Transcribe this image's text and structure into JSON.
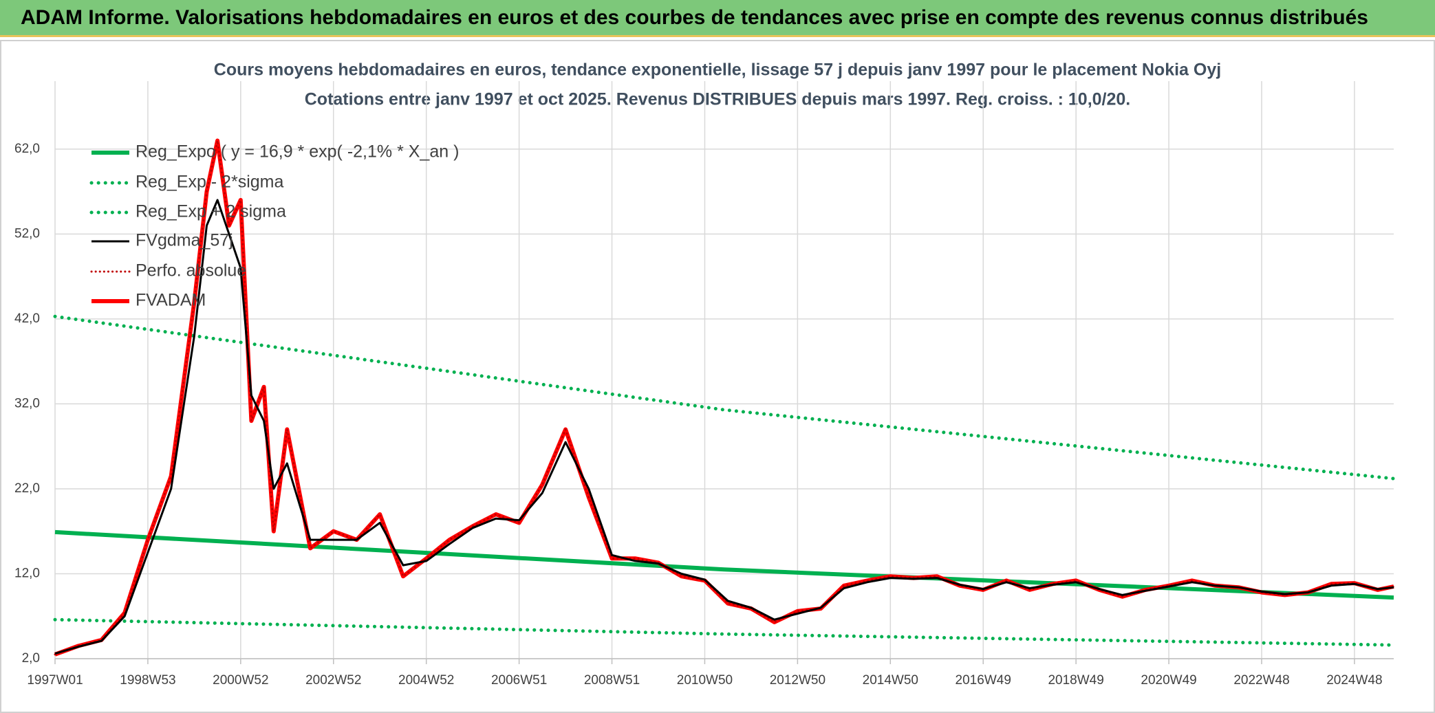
{
  "header": {
    "title": "ADAM Informe. Valorisations hebdomadaires en euros et des courbes de tendances avec prise en compte des revenus connus distribués"
  },
  "chart_data": {
    "type": "line",
    "title": "Cours moyens hebdomadaires en euros, tendance exponentielle, lissage 57 j depuis janv 1997 pour le placement Nokia Oyj",
    "subtitle": "Cotations entre janv 1997 et oct 2025. Revenus DISTRIBUES depuis mars 1997. Reg. croiss. : 10,0/20.",
    "xlim": [
      0,
      1500
    ],
    "xticks": [
      {
        "value": 0,
        "label": "1997W01"
      },
      {
        "value": 104,
        "label": "1998W53"
      },
      {
        "value": 208,
        "label": "2000W52"
      },
      {
        "value": 312,
        "label": "2002W52"
      },
      {
        "value": 416,
        "label": "2004W52"
      },
      {
        "value": 520,
        "label": "2006W51"
      },
      {
        "value": 624,
        "label": "2008W51"
      },
      {
        "value": 728,
        "label": "2010W50"
      },
      {
        "value": 832,
        "label": "2012W50"
      },
      {
        "value": 936,
        "label": "2014W50"
      },
      {
        "value": 1040,
        "label": "2016W49"
      },
      {
        "value": 1144,
        "label": "2018W49"
      },
      {
        "value": 1248,
        "label": "2020W49"
      },
      {
        "value": 1352,
        "label": "2022W48"
      },
      {
        "value": 1456,
        "label": "2024W48"
      }
    ],
    "ylim": [
      2,
      70
    ],
    "yticks": [
      {
        "value": 2,
        "label": "2,0"
      },
      {
        "value": 12,
        "label": "12,0"
      },
      {
        "value": 22,
        "label": "22,0"
      },
      {
        "value": 32,
        "label": "32,0"
      },
      {
        "value": 42,
        "label": "42,0"
      },
      {
        "value": 52,
        "label": "52,0"
      },
      {
        "value": 62,
        "label": "62,0"
      }
    ],
    "grid": true,
    "legend": "upper left",
    "series": [
      {
        "name": "Reg_Expo ( y = 16,9 * exp( -2,1% *  X_an )",
        "color": "#00b050",
        "style": "solid",
        "width": 6,
        "x": [
          0,
          750,
          1500
        ],
        "values": [
          16.9,
          12.5,
          9.2
        ]
      },
      {
        "name": "Reg_Exp - 2*sigma",
        "color": "#00b050",
        "style": "dotted",
        "width": 5,
        "x": [
          0,
          750,
          1500
        ],
        "values": [
          6.6,
          4.9,
          3.6
        ]
      },
      {
        "name": "Reg_Exp + 2 sigma",
        "color": "#00b050",
        "style": "dotted",
        "width": 5,
        "x": [
          0,
          750,
          1500
        ],
        "values": [
          42.3,
          31.3,
          23.2
        ]
      },
      {
        "name": "FVgdma_57j",
        "color": "#000000",
        "style": "solid",
        "width": 3,
        "x": [
          0,
          26,
          52,
          78,
          104,
          130,
          156,
          170,
          182,
          195,
          208,
          220,
          234,
          245,
          260,
          286,
          312,
          338,
          364,
          390,
          416,
          442,
          468,
          494,
          520,
          546,
          572,
          598,
          624,
          650,
          676,
          702,
          728,
          754,
          780,
          806,
          832,
          858,
          884,
          910,
          936,
          962,
          988,
          1014,
          1040,
          1066,
          1092,
          1118,
          1144,
          1170,
          1196,
          1222,
          1248,
          1274,
          1300,
          1326,
          1352,
          1378,
          1404,
          1430,
          1456,
          1482,
          1500
        ],
        "values": [
          2.6,
          3.4,
          4.1,
          7,
          14.5,
          22,
          40,
          53,
          56,
          52,
          48,
          33,
          30,
          22,
          25,
          16,
          16,
          16,
          18,
          13,
          13.5,
          15.5,
          17.4,
          18.5,
          18.3,
          21.5,
          27.5,
          22,
          14.2,
          13.5,
          13.2,
          12,
          11.3,
          8.8,
          8,
          6.6,
          7.3,
          8,
          10.3,
          11,
          11.5,
          11.4,
          11.5,
          10.7,
          10.2,
          11,
          10.3,
          10.7,
          11,
          10.2,
          9.5,
          10,
          10.5,
          11,
          10.6,
          10.4,
          9.9,
          9.6,
          9.8,
          10.6,
          10.8,
          10.2,
          10.4
        ]
      },
      {
        "name": "Perfo. absolue",
        "color": "#c00000",
        "style": "dotted",
        "width": 3,
        "x": [
          0,
          26,
          52,
          78,
          104,
          130,
          156,
          170,
          182,
          195,
          208,
          220,
          234,
          245,
          260,
          286,
          312,
          338,
          364,
          390,
          416,
          442,
          468,
          494,
          520,
          546,
          572,
          598,
          624,
          650,
          676,
          702,
          728,
          754,
          780,
          806,
          832,
          858,
          884,
          910,
          936,
          962,
          988,
          1014,
          1040,
          1066,
          1092,
          1118,
          1144,
          1170,
          1196,
          1222,
          1248,
          1274,
          1300,
          1326,
          1352,
          1378,
          1404,
          1430,
          1456,
          1482,
          1500
        ],
        "values": [
          2.5,
          3.5,
          4.2,
          7.4,
          16,
          23.5,
          44,
          57,
          63,
          53,
          56,
          30,
          34,
          17,
          29,
          15,
          17,
          16,
          19,
          11.7,
          13.8,
          16,
          17.6,
          19,
          18,
          22.5,
          29,
          21,
          13.8,
          13.8,
          13.3,
          11.7,
          11.2,
          8.5,
          7.9,
          6.3,
          7.6,
          7.9,
          10.6,
          11.2,
          11.7,
          11.5,
          11.7,
          10.6,
          10.1,
          11.2,
          10.1,
          10.8,
          11.2,
          10.1,
          9.3,
          10.1,
          10.6,
          11.2,
          10.6,
          10.4,
          9.8,
          9.5,
          9.8,
          10.8,
          10.9,
          10.1,
          10.5
        ]
      },
      {
        "name": "FVADAM",
        "color": "#ff0000",
        "style": "solid",
        "width": 6,
        "x": [
          0,
          26,
          52,
          78,
          104,
          130,
          156,
          170,
          182,
          195,
          208,
          220,
          234,
          245,
          260,
          286,
          312,
          338,
          364,
          390,
          416,
          442,
          468,
          494,
          520,
          546,
          572,
          598,
          624,
          650,
          676,
          702,
          728,
          754,
          780,
          806,
          832,
          858,
          884,
          910,
          936,
          962,
          988,
          1014,
          1040,
          1066,
          1092,
          1118,
          1144,
          1170,
          1196,
          1222,
          1248,
          1274,
          1300,
          1326,
          1352,
          1378,
          1404,
          1430,
          1456,
          1482,
          1500
        ],
        "values": [
          2.5,
          3.5,
          4.2,
          7.4,
          16,
          23.5,
          44,
          57,
          63,
          53,
          56,
          30,
          34,
          17,
          29,
          15,
          17,
          16,
          19,
          11.7,
          13.8,
          16,
          17.6,
          19,
          18,
          22.5,
          29,
          21,
          13.8,
          13.8,
          13.3,
          11.7,
          11.2,
          8.5,
          7.9,
          6.3,
          7.6,
          7.9,
          10.6,
          11.2,
          11.7,
          11.5,
          11.7,
          10.6,
          10.1,
          11.2,
          10.1,
          10.8,
          11.2,
          10.1,
          9.3,
          10.1,
          10.6,
          11.2,
          10.6,
          10.4,
          9.8,
          9.5,
          9.8,
          10.8,
          10.9,
          10.1,
          10.5
        ]
      }
    ]
  }
}
